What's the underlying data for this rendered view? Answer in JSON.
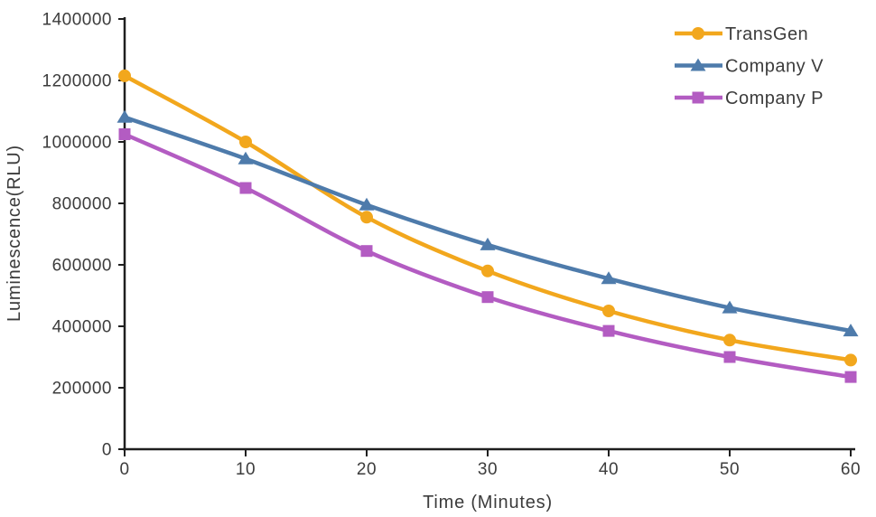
{
  "colors": {
    "background": "#ffffff",
    "axis": "#1f1f1f",
    "text": "#3c3c3c"
  },
  "chart_data": {
    "type": "line",
    "title": "",
    "xlabel": "Time (Minutes)",
    "ylabel": "Luminescence(RLU)",
    "x": [
      0,
      10,
      20,
      30,
      40,
      50,
      60
    ],
    "xlim": [
      0,
      60
    ],
    "ylim": [
      0,
      1400000
    ],
    "x_ticks": [
      0,
      10,
      20,
      30,
      40,
      50,
      60
    ],
    "y_ticks": [
      0,
      200000,
      400000,
      600000,
      800000,
      1000000,
      1200000,
      1400000
    ],
    "grid": false,
    "legend_position": "top-right",
    "line_style": "smooth",
    "series": [
      {
        "name": "TransGen",
        "color": "#F2A71D",
        "marker": "circle",
        "values": [
          1215000,
          1000000,
          755000,
          580000,
          450000,
          355000,
          290000
        ]
      },
      {
        "name": "Company V",
        "color": "#4E7BAB",
        "marker": "triangle",
        "values": [
          1080000,
          945000,
          795000,
          665000,
          555000,
          460000,
          385000
        ]
      },
      {
        "name": "Company P",
        "color": "#B35CC2",
        "marker": "square",
        "values": [
          1025000,
          850000,
          645000,
          495000,
          385000,
          300000,
          235000
        ]
      }
    ]
  }
}
